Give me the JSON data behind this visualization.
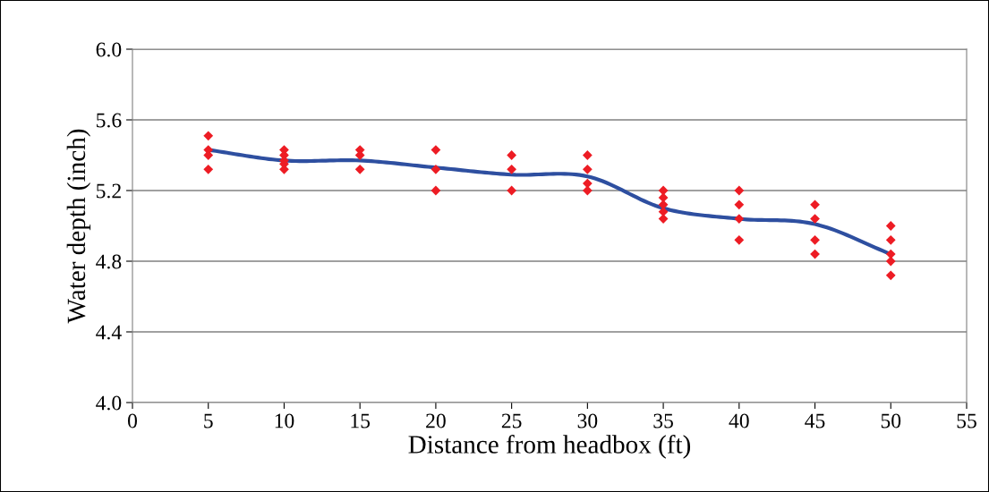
{
  "chart_data": {
    "type": "scatter",
    "xlabel": "Distance from headbox (ft)",
    "ylabel": "Water depth (inch)",
    "xlim": [
      0,
      55
    ],
    "xticks": [
      0,
      5,
      10,
      15,
      20,
      25,
      30,
      35,
      40,
      45,
      50,
      55
    ],
    "ylim": [
      4.0,
      6.0
    ],
    "yticks": [
      {
        "value": 4.0,
        "label": "4.0"
      },
      {
        "value": 4.4,
        "label": "4.4"
      },
      {
        "value": 4.8,
        "label": "4.8"
      },
      {
        "value": 5.2,
        "label": "5.2"
      },
      {
        "value": 5.6,
        "label": "5.6"
      },
      {
        "value": 6.0,
        "label": "6.0"
      }
    ],
    "grid": "y",
    "legend": false,
    "series": [
      {
        "color": "#ed1c24",
        "marker": "diamond",
        "x": [
          5,
          5,
          5,
          5,
          10,
          10,
          10,
          10,
          10,
          15,
          15,
          15,
          20,
          20,
          20,
          25,
          25,
          25,
          30,
          30,
          30,
          30,
          35,
          35,
          35,
          35,
          35,
          40,
          40,
          40,
          40,
          45,
          45,
          45,
          45,
          50,
          50,
          50,
          50,
          50
        ],
        "values": [
          5.51,
          5.43,
          5.4,
          5.32,
          5.43,
          5.4,
          5.37,
          5.35,
          5.32,
          5.43,
          5.4,
          5.32,
          5.43,
          5.32,
          5.2,
          5.4,
          5.32,
          5.2,
          5.4,
          5.32,
          5.24,
          5.2,
          5.2,
          5.16,
          5.12,
          5.08,
          5.04,
          5.2,
          5.12,
          5.04,
          4.92,
          5.12,
          5.04,
          4.92,
          4.84,
          5.0,
          4.92,
          4.84,
          4.8,
          4.72
        ]
      },
      {
        "type": "line",
        "color": "#2e4fa0",
        "marker": "none",
        "line_style": "solid",
        "x": [
          5,
          10,
          15,
          20,
          25,
          30,
          35,
          40,
          45,
          50
        ],
        "values": [
          5.43,
          5.37,
          5.37,
          5.33,
          5.29,
          5.28,
          5.1,
          5.04,
          5.01,
          4.84
        ]
      }
    ]
  }
}
